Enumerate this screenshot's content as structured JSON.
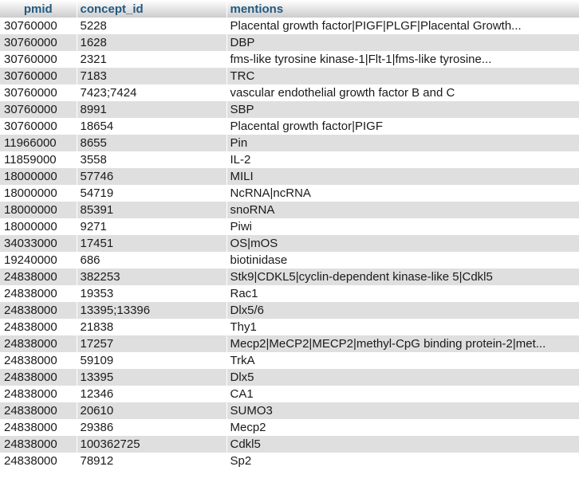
{
  "table": {
    "columns": [
      "pmid",
      "concept_id",
      "mentions"
    ],
    "rows": [
      [
        "30760000",
        "5228",
        "Placental growth factor|PIGF|PLGF|Placental Growth..."
      ],
      [
        "30760000",
        "1628",
        "DBP"
      ],
      [
        "30760000",
        "2321",
        "fms-like tyrosine kinase-1|Flt-1|fms-like tyrosine..."
      ],
      [
        "30760000",
        "7183",
        "TRC"
      ],
      [
        "30760000",
        "7423;7424",
        "vascular endothelial growth factor B and C"
      ],
      [
        "30760000",
        "8991",
        "SBP"
      ],
      [
        "30760000",
        "18654",
        "Placental growth factor|PIGF"
      ],
      [
        "11966000",
        "8655",
        "Pin"
      ],
      [
        "11859000",
        "3558",
        "IL-2"
      ],
      [
        "18000000",
        "57746",
        "MILI"
      ],
      [
        "18000000",
        "54719",
        "NcRNA|ncRNA"
      ],
      [
        "18000000",
        "85391",
        "snoRNA"
      ],
      [
        "18000000",
        "9271",
        "Piwi"
      ],
      [
        "34033000",
        "17451",
        "OS|mOS"
      ],
      [
        "19240000",
        "686",
        "biotinidase"
      ],
      [
        "24838000",
        "382253",
        "Stk9|CDKL5|cyclin-dependent kinase-like 5|Cdkl5"
      ],
      [
        "24838000",
        "19353",
        "Rac1"
      ],
      [
        "24838000",
        "13395;13396",
        "Dlx5/6"
      ],
      [
        "24838000",
        "21838",
        "Thy1"
      ],
      [
        "24838000",
        "17257",
        "Mecp2|MeCP2|MECP2|methyl-CpG binding protein-2|met..."
      ],
      [
        "24838000",
        "59109",
        "TrkA"
      ],
      [
        "24838000",
        "13395",
        "Dlx5"
      ],
      [
        "24838000",
        "12346",
        "CA1"
      ],
      [
        "24838000",
        "20610",
        "SUMO3"
      ],
      [
        "24838000",
        "29386",
        "Mecp2"
      ],
      [
        "24838000",
        "100362725",
        "Cdkl5"
      ],
      [
        "24838000",
        "78912",
        "Sp2"
      ]
    ]
  }
}
